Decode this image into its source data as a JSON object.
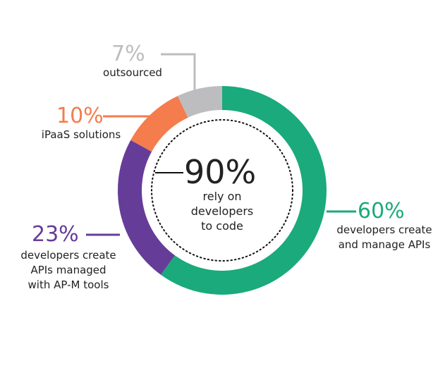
{
  "chart_data": {
    "type": "donut",
    "categories": [
      "developers create\nand manage APIs",
      "developers create\nAPIs managed\nwith AP-M tools",
      "iPaaS solutions",
      "outsourced"
    ],
    "values": [
      60,
      23,
      10,
      7
    ],
    "value_labels": [
      "60%",
      "23%",
      "10%",
      "7%"
    ],
    "colors": [
      "#1aaa7b",
      "#663c99",
      "#f47c4d",
      "#bdbdbf"
    ],
    "center_value_label": "90%",
    "center_text": "rely on\ndevelopers\nto code"
  }
}
